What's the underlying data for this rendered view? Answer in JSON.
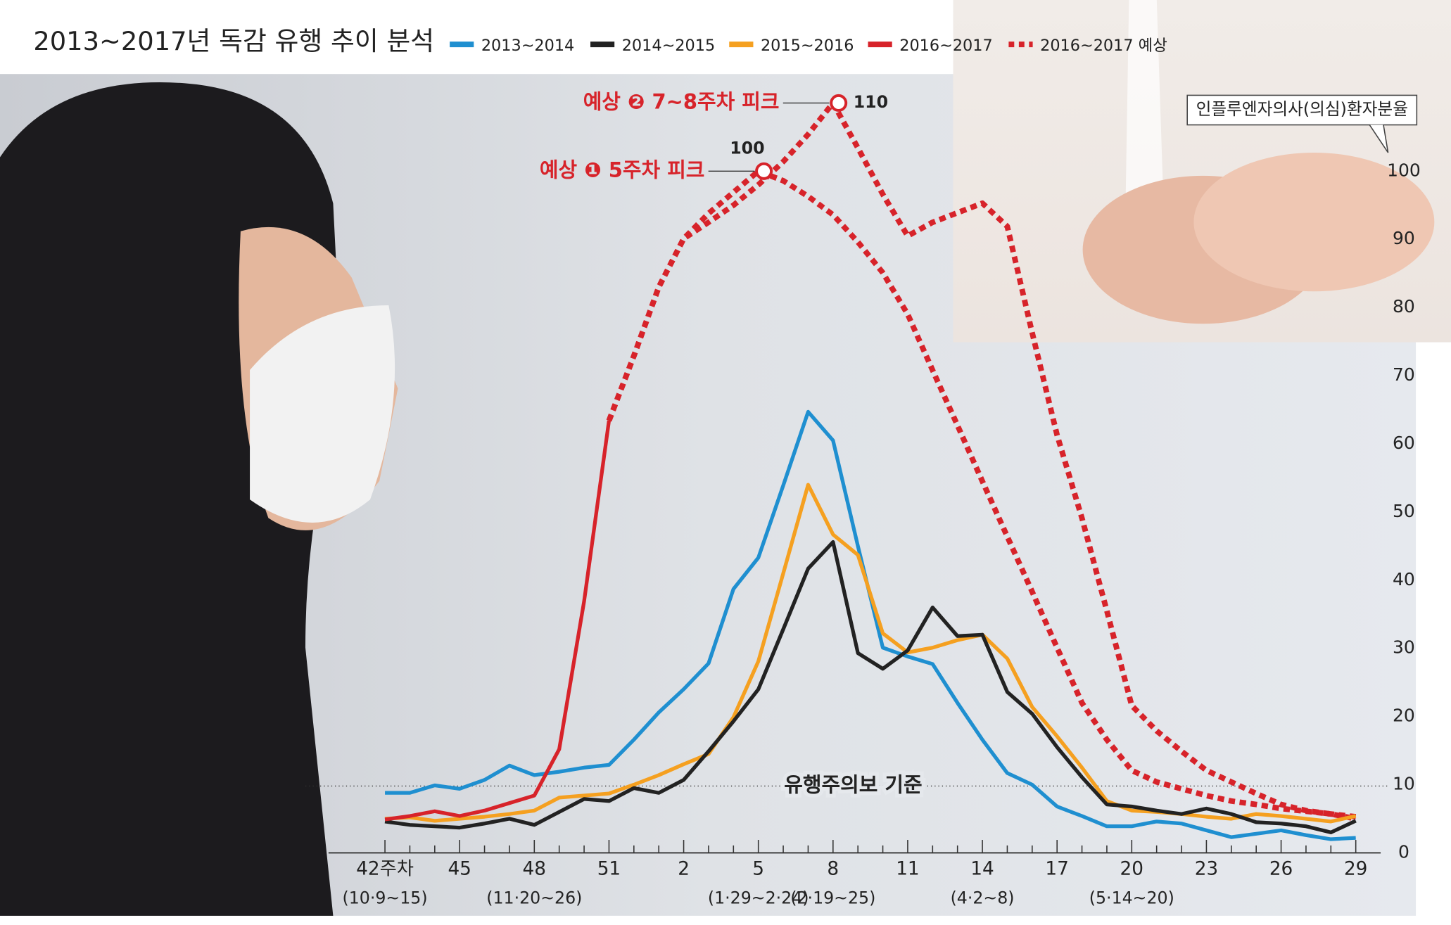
{
  "chart_data": {
    "type": "line",
    "title": "2013~2017년 독감 유행 추이 분석",
    "y_axis_label": "인플루엔자의사(의심)환자분율",
    "categories": [
      "42주차",
      null,
      null,
      "45",
      null,
      null,
      "48",
      null,
      null,
      "51",
      null,
      null,
      "2",
      null,
      null,
      "5",
      null,
      null,
      "8",
      null,
      null,
      "11",
      null,
      null,
      "14",
      null,
      null,
      "17",
      null,
      null,
      "20",
      null,
      null,
      "23",
      null,
      null,
      "26",
      null,
      null,
      "29"
    ],
    "x_sublabels": [
      "(10·9~15)",
      null,
      null,
      null,
      null,
      null,
      "(11·20~26)",
      null,
      null,
      null,
      null,
      null,
      null,
      null,
      null,
      "(1·29~2·24)",
      null,
      null,
      "(2·19~25)",
      null,
      null,
      null,
      null,
      null,
      "(4·2~8)",
      null,
      null,
      null,
      null,
      null,
      "(5·14~20)",
      null,
      null,
      null,
      null,
      null,
      null,
      null,
      null,
      null
    ],
    "ylim": [
      0,
      115
    ],
    "yticks": [
      0,
      10,
      20,
      30,
      40,
      50,
      60,
      70,
      80,
      90,
      100
    ],
    "series": [
      {
        "name": "2013~2014",
        "color": "#1f8fd0",
        "values": [
          8.8,
          8.8,
          9.9,
          9.4,
          10.7,
          12.8,
          11.4,
          11.9,
          12.5,
          12.9,
          16.6,
          20.6,
          24,
          27.8,
          38.7,
          43.3,
          53.9,
          64.7,
          60.5,
          45,
          30.1,
          28.8,
          27.7,
          22,
          16.6,
          11.7,
          10,
          6.8,
          5.4,
          3.9,
          3.9,
          4.6,
          4.3,
          3.3,
          2.3,
          2.8,
          3.3,
          2.6,
          2,
          2.2
        ]
      },
      {
        "name": "2014~2015",
        "color": "#222222",
        "values": [
          4.6,
          4.1,
          3.9,
          3.7,
          4.3,
          5,
          4.1,
          6,
          7.9,
          7.6,
          9.5,
          8.8,
          10.7,
          14.9,
          19.3,
          24,
          32.8,
          41.7,
          45.6,
          29.3,
          27,
          29.7,
          36,
          31.8,
          32,
          23.6,
          20.4,
          15.5,
          11.1,
          7.1,
          6.8,
          6.2,
          5.7,
          6.5,
          5.7,
          4.5,
          4.3,
          3.9,
          3,
          4.7
        ]
      },
      {
        "name": "2015~2016",
        "color": "#f5a020",
        "values": [
          5,
          5.2,
          4.7,
          5,
          5.3,
          5.7,
          6.2,
          8.1,
          8.4,
          8.7,
          10,
          11.4,
          13,
          14.5,
          19.9,
          28.1,
          41,
          54,
          46.7,
          43.7,
          32.2,
          29.4,
          30.1,
          31.2,
          32,
          28.5,
          21.4,
          17.1,
          12.5,
          7.6,
          6.2,
          6,
          5.7,
          5.3,
          5,
          5.7,
          5.4,
          5,
          4.6,
          5.4
        ]
      },
      {
        "name": "2016~2017",
        "color": "#d7232a",
        "values": [
          4.9,
          5.4,
          6.1,
          5.4,
          6.2,
          7.3,
          8.4,
          15.2,
          36.9,
          63.4,
          null,
          null,
          null,
          null,
          null,
          null,
          null,
          null,
          null,
          null,
          null,
          null,
          null,
          null,
          null,
          null,
          null,
          null,
          null,
          null,
          null,
          null,
          null,
          null,
          null,
          null,
          null,
          null,
          null,
          null
        ]
      },
      {
        "name": "2016~2017 예상",
        "color": "#d7232a",
        "dashed": true,
        "values": [
          null,
          null,
          null,
          null,
          null,
          null,
          null,
          null,
          null,
          63.4,
          72.9,
          83,
          90.1,
          92.5,
          95,
          98,
          101.4,
          105.4,
          110,
          103.4,
          96.6,
          90.5,
          92.5,
          93.9,
          95.3,
          91.9,
          76.3,
          61.3,
          49.1,
          35.5,
          21.6,
          17.9,
          14.9,
          12.1,
          10.4,
          8.7,
          7.1,
          6.2,
          5.7,
          5
        ]
      },
      {
        "color": "#d7232a",
        "dashed": true,
        "values": [
          null,
          null,
          null,
          null,
          null,
          null,
          null,
          null,
          null,
          63.4,
          72.9,
          83,
          90.1,
          93.8,
          96.9,
          100,
          98.6,
          96.3,
          93.6,
          89.6,
          85.1,
          79,
          70.8,
          62.7,
          54.5,
          46.4,
          38.3,
          30.1,
          22,
          16.6,
          12.1,
          10.4,
          9.4,
          8.4,
          7.6,
          7.1,
          6.5,
          6.1,
          5.7,
          5.3
        ]
      }
    ],
    "annotations": [
      {
        "text": "예상 ❷ 7~8주차 피크",
        "value": 110
      },
      {
        "text": "예상 ❶ 5주차 피크",
        "value": 100
      }
    ],
    "threshold": {
      "label": "유행주의보 기준",
      "value": 9.8
    }
  }
}
